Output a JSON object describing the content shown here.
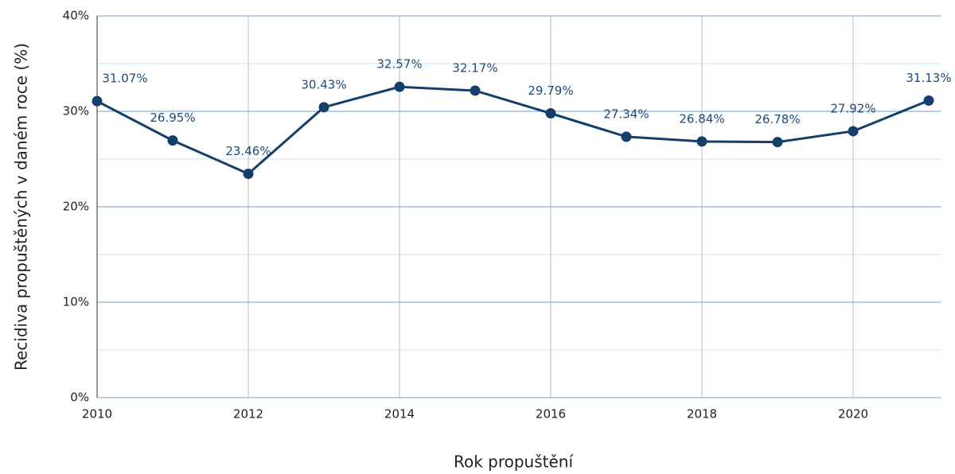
{
  "chart_data": {
    "type": "line",
    "x_label": "Rok propuštění",
    "y_label": "Recidiva propuštěných v daném roce (%)",
    "x": [
      2010,
      2011,
      2012,
      2013,
      2014,
      2015,
      2016,
      2017,
      2018,
      2019,
      2020,
      2021
    ],
    "series": [
      {
        "name": "Recidiva",
        "color": "#143f6b",
        "values": [
          31.07,
          26.95,
          23.46,
          30.43,
          32.57,
          32.17,
          29.79,
          27.34,
          26.84,
          26.78,
          27.92,
          31.13
        ],
        "value_labels": [
          "31.07%",
          "26.95%",
          "23.46%",
          "30.43%",
          "32.57%",
          "32.17%",
          "29.79%",
          "27.34%",
          "26.84%",
          "26.78%",
          "27.92%",
          "31.13%"
        ]
      }
    ],
    "xlim": [
      2010,
      2021
    ],
    "xticks": [
      2010,
      2012,
      2014,
      2016,
      2018,
      2020
    ],
    "ylim": [
      0,
      40
    ],
    "yticks": [
      {
        "value": 0,
        "label": "0%"
      },
      {
        "value": 10,
        "label": "10%"
      },
      {
        "value": 20,
        "label": "20%"
      },
      {
        "value": 30,
        "label": "30%"
      },
      {
        "value": 40,
        "label": "40%"
      }
    ],
    "y_minor_ticks": [
      5,
      15,
      25,
      35
    ],
    "grid": true
  }
}
